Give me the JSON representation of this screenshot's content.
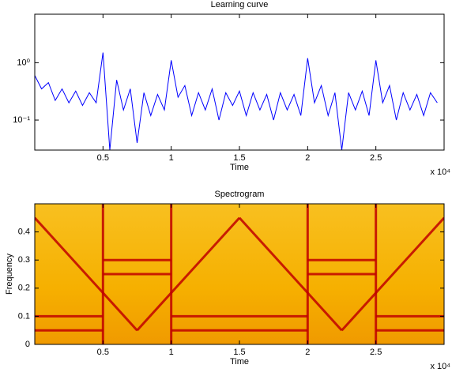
{
  "chart_data": [
    {
      "type": "line",
      "title": "Learning curve",
      "xlabel": "Time",
      "x_multiplier": "x 10⁴",
      "yscale": "log",
      "grid": false,
      "xlim": [
        0,
        30000
      ],
      "ylim": [
        0.03,
        7
      ],
      "xticks": [
        {
          "value": 5000,
          "label": "0.5"
        },
        {
          "value": 10000,
          "label": "1"
        },
        {
          "value": 15000,
          "label": "1.5"
        },
        {
          "value": 20000,
          "label": "2"
        },
        {
          "value": 25000,
          "label": "2.5"
        }
      ],
      "yticks": [
        {
          "value": 0.1,
          "label": "10⁻¹"
        },
        {
          "value": 1,
          "label": "10⁰"
        }
      ],
      "series": [
        {
          "color": "#0000ff",
          "x": [
            0,
            500,
            1000,
            1500,
            2000,
            2500,
            3000,
            3500,
            4000,
            4500,
            5000,
            5500,
            6000,
            6500,
            7000,
            7500,
            8000,
            8500,
            9000,
            9500,
            10000,
            10500,
            11000,
            11500,
            12000,
            12500,
            13000,
            13500,
            14000,
            14500,
            15000,
            15500,
            16000,
            16500,
            17000,
            17500,
            18000,
            18500,
            19000,
            19500,
            20000,
            20500,
            21000,
            21500,
            22000,
            22500,
            23000,
            23500,
            24000,
            24500,
            25000,
            25500,
            26000,
            26500,
            27000,
            27500,
            28000,
            28500,
            29000,
            29500
          ],
          "values": [
            0.6,
            0.35,
            0.45,
            0.22,
            0.35,
            0.2,
            0.32,
            0.18,
            0.3,
            0.2,
            1.5,
            0.03,
            0.5,
            0.15,
            0.35,
            0.04,
            0.3,
            0.12,
            0.28,
            0.15,
            1.1,
            0.25,
            0.4,
            0.12,
            0.3,
            0.15,
            0.35,
            0.1,
            0.3,
            0.18,
            0.32,
            0.12,
            0.3,
            0.15,
            0.28,
            0.1,
            0.3,
            0.15,
            0.28,
            0.12,
            1.2,
            0.2,
            0.4,
            0.12,
            0.3,
            0.03,
            0.3,
            0.15,
            0.32,
            0.12,
            1.1,
            0.2,
            0.4,
            0.1,
            0.3,
            0.15,
            0.28,
            0.12,
            0.3,
            0.2
          ]
        }
      ]
    },
    {
      "type": "spectrogram",
      "title": "Spectrogram",
      "xlabel": "Time",
      "ylabel": "Frequency",
      "x_multiplier": "x 10⁴",
      "grid": false,
      "color": "#f6b300",
      "line_color": "#c00000",
      "xlim": [
        0,
        30000
      ],
      "ylim": [
        0,
        0.5
      ],
      "xticks": [
        {
          "value": 5000,
          "label": "0.5"
        },
        {
          "value": 10000,
          "label": "1"
        },
        {
          "value": 15000,
          "label": "1.5"
        },
        {
          "value": 20000,
          "label": "2"
        },
        {
          "value": 25000,
          "label": "2.5"
        }
      ],
      "yticks": [
        0,
        0.1,
        0.2,
        0.3,
        0.4
      ],
      "segments": [
        {
          "x": [
            0,
            7500
          ],
          "y": [
            0.45,
            0.05
          ]
        },
        {
          "x": [
            7500,
            15000
          ],
          "y": [
            0.05,
            0.45
          ]
        },
        {
          "x": [
            15000,
            22500
          ],
          "y": [
            0.45,
            0.05
          ]
        },
        {
          "x": [
            22500,
            30000
          ],
          "y": [
            0.05,
            0.45
          ]
        },
        {
          "x": [
            0,
            5000
          ],
          "y": [
            0.1,
            0.1
          ]
        },
        {
          "x": [
            0,
            5000
          ],
          "y": [
            0.05,
            0.05
          ]
        },
        {
          "x": [
            5000,
            10000
          ],
          "y": [
            0.3,
            0.3
          ]
        },
        {
          "x": [
            5000,
            10000
          ],
          "y": [
            0.25,
            0.25
          ]
        },
        {
          "x": [
            10000,
            20000
          ],
          "y": [
            0.1,
            0.1
          ]
        },
        {
          "x": [
            10000,
            20000
          ],
          "y": [
            0.05,
            0.05
          ]
        },
        {
          "x": [
            20000,
            25000
          ],
          "y": [
            0.3,
            0.3
          ]
        },
        {
          "x": [
            20000,
            25000
          ],
          "y": [
            0.25,
            0.25
          ]
        },
        {
          "x": [
            25000,
            30000
          ],
          "y": [
            0.1,
            0.1
          ]
        },
        {
          "x": [
            25000,
            30000
          ],
          "y": [
            0.05,
            0.05
          ]
        },
        {
          "x": [
            5000,
            5000
          ],
          "y": [
            0,
            0.5
          ]
        },
        {
          "x": [
            10000,
            10000
          ],
          "y": [
            0,
            0.5
          ]
        },
        {
          "x": [
            20000,
            20000
          ],
          "y": [
            0,
            0.5
          ]
        },
        {
          "x": [
            25000,
            25000
          ],
          "y": [
            0,
            0.5
          ]
        }
      ]
    }
  ]
}
